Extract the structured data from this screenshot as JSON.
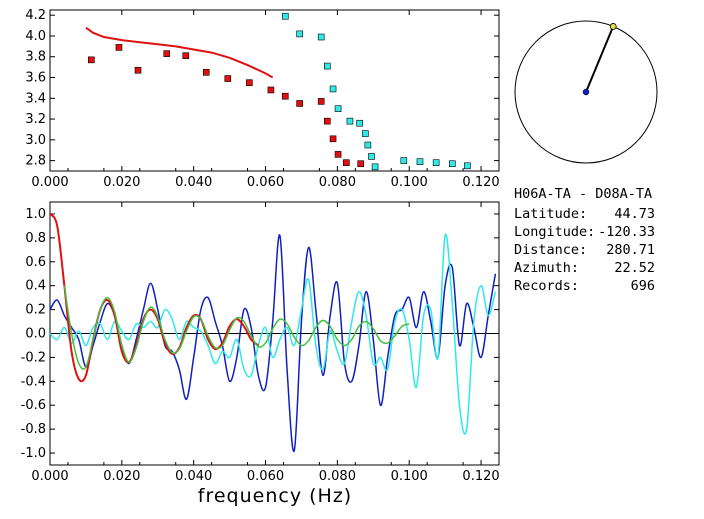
{
  "info_panel": {
    "title": "H06A-TA  - D08A-TA",
    "rows": [
      {
        "label": "Latitude:",
        "value": "44.73"
      },
      {
        "label": "Longitude:",
        "value": "-120.33"
      },
      {
        "label": "Distance:",
        "value": "280.71"
      },
      {
        "label": "Azimuth:",
        "value": "22.52"
      },
      {
        "label": "Records:",
        "value": "696"
      }
    ]
  },
  "colors": {
    "red": "#e01010",
    "cyan": "#30e8e8",
    "blue": "#1020c0",
    "green": "#40c040",
    "black": "#000000"
  },
  "chart_data": [
    {
      "type": "scatter",
      "xlim": [
        0.0,
        0.125
      ],
      "ylim": [
        2.7,
        4.25
      ],
      "xticks": [
        "0.000",
        "0.020",
        "0.040",
        "0.060",
        "0.080",
        "0.100",
        "0.120"
      ],
      "yticks": [
        "2.8",
        "3.0",
        "3.2",
        "3.4",
        "3.6",
        "3.8",
        "4.0",
        "4.2"
      ],
      "series": [
        {
          "color": "#e01010",
          "kind": "markers",
          "x": [
            0.0115,
            0.0192,
            0.0245,
            0.0325,
            0.0378,
            0.0435,
            0.0495,
            0.0555,
            0.0615,
            0.0655,
            0.0695,
            0.0755,
            0.0772,
            0.0788,
            0.0802,
            0.0825,
            0.0865
          ],
          "y": [
            3.77,
            3.89,
            3.67,
            3.83,
            3.81,
            3.65,
            3.59,
            3.55,
            3.48,
            3.42,
            3.35,
            3.37,
            3.18,
            3.01,
            2.86,
            2.78,
            2.77
          ]
        },
        {
          "color": "#30e8e8",
          "kind": "markers",
          "x": [
            0.0655,
            0.0695,
            0.0755,
            0.0772,
            0.0788,
            0.0802,
            0.0835,
            0.0862,
            0.0878,
            0.0885,
            0.0895,
            0.0905,
            0.0985,
            0.103,
            0.1075,
            0.112,
            0.1162
          ],
          "y": [
            4.19,
            4.02,
            3.99,
            3.71,
            3.49,
            3.3,
            3.18,
            3.16,
            3.06,
            2.95,
            2.84,
            2.74,
            2.8,
            2.79,
            2.78,
            2.77,
            2.75
          ]
        },
        {
          "color": "#e01010",
          "kind": "line",
          "x": [
            0.01,
            0.012,
            0.015,
            0.02,
            0.025,
            0.03,
            0.035,
            0.04,
            0.045,
            0.05,
            0.055,
            0.06,
            0.062
          ],
          "y": [
            4.08,
            4.03,
            3.99,
            3.96,
            3.94,
            3.92,
            3.9,
            3.87,
            3.84,
            3.79,
            3.72,
            3.64,
            3.6
          ]
        }
      ]
    },
    {
      "type": "line",
      "xlabel": "frequency (Hz)",
      "xlim": [
        0.0,
        0.125
      ],
      "ylim": [
        -1.1,
        1.1
      ],
      "xticks": [
        "0.000",
        "0.020",
        "0.040",
        "0.060",
        "0.080",
        "0.100",
        "0.120"
      ],
      "yticks": [
        "1.0",
        "0.8",
        "0.6",
        "0.4",
        "0.2",
        "0.0",
        "-0.2",
        "-0.4",
        "-0.6",
        "-0.8",
        "-1.0"
      ],
      "series": [
        {
          "color": "#1020c0",
          "x": [
            0.0,
            0.002,
            0.004,
            0.006,
            0.008,
            0.01,
            0.012,
            0.014,
            0.016,
            0.018,
            0.02,
            0.022,
            0.024,
            0.026,
            0.028,
            0.03,
            0.032,
            0.034,
            0.036,
            0.038,
            0.04,
            0.042,
            0.044,
            0.046,
            0.048,
            0.05,
            0.052,
            0.054,
            0.056,
            0.058,
            0.06,
            0.062,
            0.064,
            0.066,
            0.068,
            0.07,
            0.072,
            0.074,
            0.076,
            0.078,
            0.08,
            0.082,
            0.084,
            0.086,
            0.088,
            0.09,
            0.092,
            0.094,
            0.096,
            0.098,
            0.1,
            0.102,
            0.104,
            0.106,
            0.108,
            0.11,
            0.112,
            0.114,
            0.116,
            0.118,
            0.12,
            0.122,
            0.124
          ],
          "y": [
            0.2,
            0.28,
            0.15,
            0.05,
            -0.05,
            -0.28,
            -0.1,
            0.1,
            0.25,
            0.15,
            -0.1,
            -0.25,
            -0.05,
            0.2,
            0.42,
            0.2,
            -0.1,
            -0.15,
            -0.3,
            -0.55,
            -0.2,
            0.2,
            0.3,
            0.1,
            -0.1,
            -0.4,
            -0.2,
            0.2,
            0.05,
            -0.35,
            -0.45,
            0.1,
            0.82,
            -0.3,
            -0.98,
            0.1,
            0.72,
            0.2,
            -0.35,
            0.15,
            0.42,
            -0.25,
            -0.4,
            -0.1,
            0.35,
            -0.05,
            -0.6,
            -0.2,
            0.15,
            0.2,
            0.3,
            0.05,
            0.35,
            0.1,
            -0.2,
            0.4,
            0.55,
            -0.1,
            0.25,
            0.05,
            -0.2,
            0.15,
            0.5
          ]
        },
        {
          "color": "#30e8e8",
          "x": [
            0.0,
            0.002,
            0.004,
            0.006,
            0.008,
            0.01,
            0.012,
            0.014,
            0.016,
            0.018,
            0.02,
            0.022,
            0.024,
            0.026,
            0.028,
            0.03,
            0.032,
            0.034,
            0.036,
            0.038,
            0.04,
            0.042,
            0.044,
            0.046,
            0.048,
            0.05,
            0.052,
            0.054,
            0.056,
            0.058,
            0.06,
            0.062,
            0.064,
            0.066,
            0.068,
            0.07,
            0.072,
            0.074,
            0.076,
            0.078,
            0.08,
            0.082,
            0.084,
            0.086,
            0.088,
            0.09,
            0.092,
            0.094,
            0.096,
            0.098,
            0.1,
            0.102,
            0.104,
            0.106,
            0.108,
            0.11,
            0.112,
            0.114,
            0.116,
            0.118,
            0.12,
            0.122,
            0.124
          ],
          "y": [
            0.0,
            -0.05,
            0.05,
            -0.08,
            0.02,
            -0.1,
            0.05,
            0.08,
            -0.05,
            0.1,
            0.02,
            -0.05,
            0.08,
            0.05,
            0.1,
            0.05,
            0.2,
            0.12,
            -0.05,
            0.1,
            0.05,
            0.02,
            -0.1,
            -0.25,
            -0.15,
            -0.2,
            -0.05,
            -0.3,
            -0.35,
            -0.1,
            0.05,
            -0.2,
            -0.05,
            0.05,
            -0.1,
            0.2,
            0.45,
            -0.1,
            -0.3,
            0.02,
            -0.15,
            -0.25,
            0.1,
            0.35,
            0.15,
            -0.25,
            -0.2,
            -0.3,
            0.1,
            0.2,
            -0.05,
            -0.45,
            0.15,
            0.2,
            -0.2,
            0.82,
            0.25,
            -0.6,
            -0.8,
            0.1,
            0.4,
            0.15,
            0.35
          ]
        },
        {
          "color": "#e01010",
          "x": [
            0.0,
            0.002,
            0.004,
            0.006,
            0.008,
            0.01,
            0.012,
            0.014,
            0.016,
            0.018,
            0.02,
            0.022,
            0.024,
            0.026,
            0.028,
            0.03,
            0.032,
            0.034,
            0.036,
            0.038,
            0.04,
            0.042,
            0.044,
            0.046,
            0.048,
            0.05,
            0.052,
            0.054,
            0.056,
            0.058
          ],
          "y": [
            1.0,
            0.9,
            0.4,
            -0.15,
            -0.38,
            -0.35,
            -0.05,
            0.2,
            0.28,
            0.15,
            -0.15,
            -0.24,
            -0.1,
            0.12,
            0.2,
            0.12,
            -0.08,
            -0.17,
            -0.12,
            0.05,
            0.15,
            0.12,
            -0.05,
            -0.13,
            -0.08,
            0.06,
            0.12,
            0.06,
            -0.05,
            -0.1
          ]
        },
        {
          "color": "#40c040",
          "x": [
            0.004,
            0.006,
            0.008,
            0.01,
            0.012,
            0.014,
            0.016,
            0.018,
            0.02,
            0.022,
            0.024,
            0.026,
            0.028,
            0.03,
            0.032,
            0.034,
            0.036,
            0.038,
            0.04,
            0.042,
            0.044,
            0.046,
            0.048,
            0.05,
            0.052,
            0.054,
            0.056,
            0.058,
            0.06,
            0.062,
            0.064,
            0.066,
            0.068,
            0.07,
            0.072,
            0.074,
            0.076,
            0.078,
            0.08,
            0.082,
            0.084,
            0.086,
            0.088,
            0.09,
            0.092,
            0.094,
            0.096,
            0.098,
            0.1
          ],
          "y": [
            0.4,
            0.0,
            -0.25,
            -0.28,
            -0.05,
            0.2,
            0.3,
            0.18,
            -0.1,
            -0.24,
            -0.12,
            0.1,
            0.22,
            0.14,
            -0.05,
            -0.16,
            -0.13,
            0.02,
            0.14,
            0.12,
            -0.02,
            -0.12,
            -0.1,
            0.03,
            0.13,
            0.1,
            -0.02,
            -0.11,
            -0.08,
            0.04,
            0.12,
            0.08,
            -0.03,
            -0.1,
            -0.06,
            0.05,
            0.11,
            0.06,
            -0.05,
            -0.1,
            -0.05,
            0.06,
            0.1,
            0.04,
            -0.06,
            -0.08,
            -0.02,
            0.06,
            0.08
          ]
        }
      ]
    },
    {
      "type": "polar",
      "azimuth_deg": 22.52,
      "dots": [
        {
          "color": "#1020c0"
        },
        {
          "color": "#e0e040"
        }
      ]
    }
  ]
}
